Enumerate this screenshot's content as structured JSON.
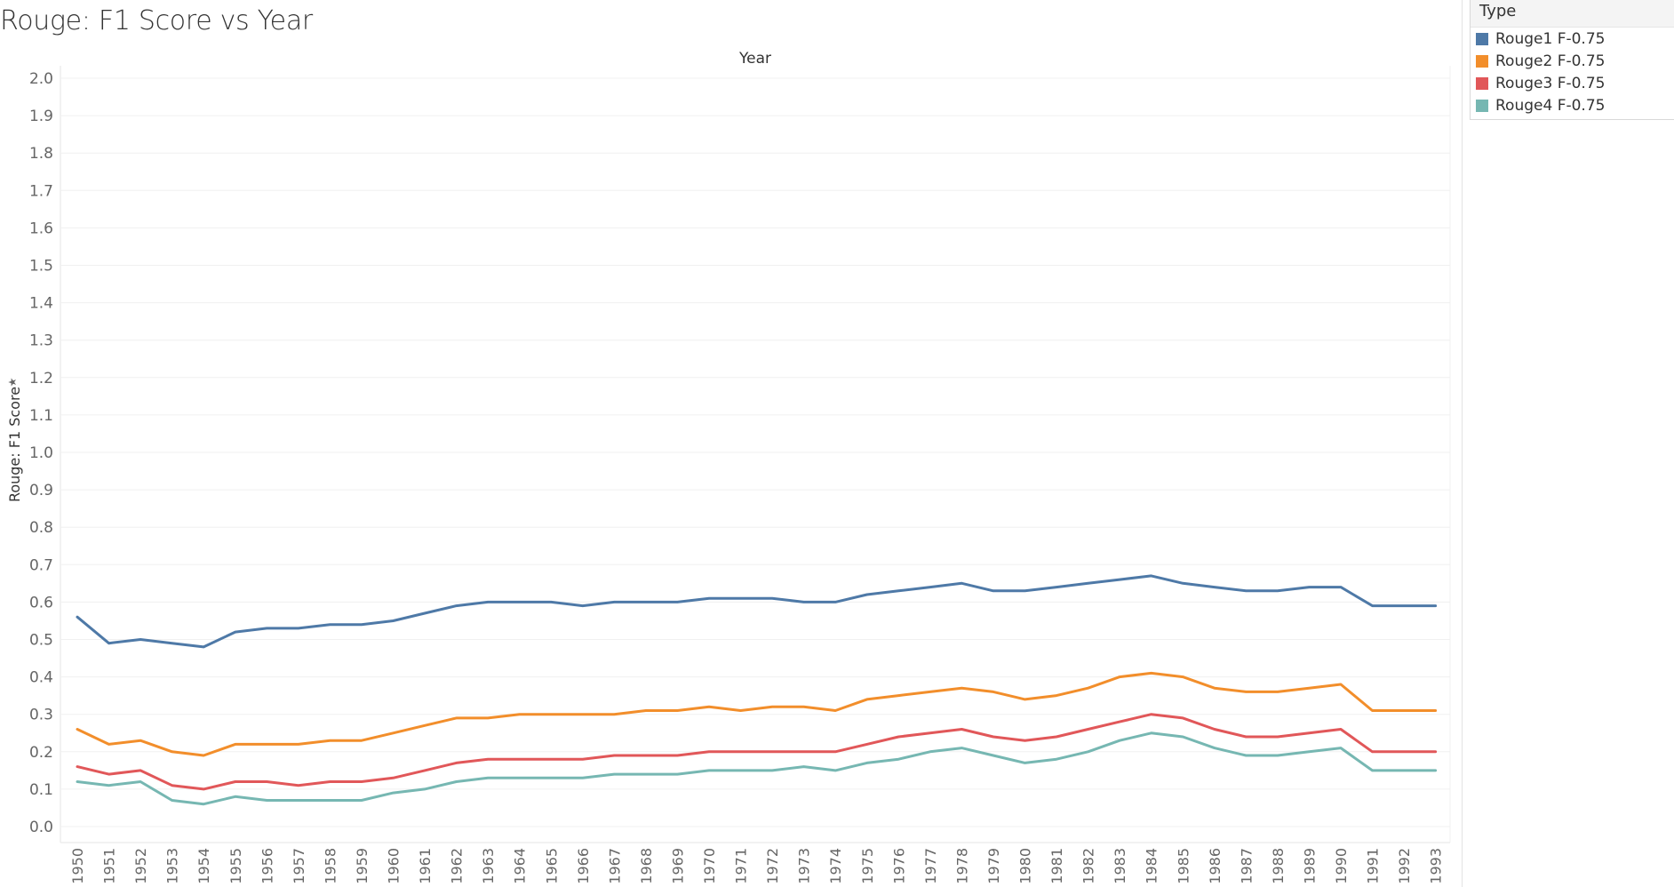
{
  "chart_data": {
    "type": "line",
    "title": "Rouge: F1 Score vs Year",
    "xlabel": "Year",
    "ylabel": "Rouge: F1 Score",
    "ylim": [
      0,
      2
    ],
    "yticks": [
      "0.0",
      "0.1",
      "0.2",
      "0.3",
      "0.4",
      "0.5",
      "0.6",
      "0.7",
      "0.8",
      "0.9",
      "1.0",
      "1.1",
      "1.2",
      "1.3",
      "1.4",
      "1.5",
      "1.6",
      "1.7",
      "1.8",
      "1.9",
      "2.0"
    ],
    "grid": true,
    "legend_position": "top-right",
    "categories": [
      "1950",
      "1951",
      "1952",
      "1953",
      "1954",
      "1955",
      "1956",
      "1957",
      "1958",
      "1959",
      "1960",
      "1961",
      "1962",
      "1963",
      "1964",
      "1965",
      "1966",
      "1967",
      "1968",
      "1969",
      "1970",
      "1971",
      "1972",
      "1973",
      "1974",
      "1975",
      "1976",
      "1977",
      "1978",
      "1979",
      "1980",
      "1981",
      "1982",
      "1983",
      "1984",
      "1985",
      "1986",
      "1987",
      "1988",
      "1989",
      "1990",
      "1991",
      "1992",
      "1993"
    ],
    "series": [
      {
        "name": "Rouge1 F-0.75",
        "color": "#4e79a7",
        "values": [
          0.56,
          0.49,
          0.5,
          0.49,
          0.48,
          0.52,
          0.53,
          0.53,
          0.54,
          0.54,
          0.55,
          0.57,
          0.59,
          0.6,
          0.6,
          0.6,
          0.59,
          0.6,
          0.6,
          0.6,
          0.61,
          0.61,
          0.61,
          0.6,
          0.6,
          0.62,
          0.63,
          0.64,
          0.65,
          0.63,
          0.63,
          0.64,
          0.65,
          0.66,
          0.67,
          0.65,
          0.64,
          0.63,
          0.63,
          0.64,
          0.64,
          0.59,
          0.59,
          0.59
        ]
      },
      {
        "name": "Rouge2 F-0.75",
        "color": "#f28e2b",
        "values": [
          0.26,
          0.22,
          0.23,
          0.2,
          0.19,
          0.22,
          0.22,
          0.22,
          0.23,
          0.23,
          0.25,
          0.27,
          0.29,
          0.29,
          0.3,
          0.3,
          0.3,
          0.3,
          0.31,
          0.31,
          0.32,
          0.31,
          0.32,
          0.32,
          0.31,
          0.34,
          0.35,
          0.36,
          0.37,
          0.36,
          0.34,
          0.35,
          0.37,
          0.4,
          0.41,
          0.4,
          0.37,
          0.36,
          0.36,
          0.37,
          0.38,
          0.31,
          0.31,
          0.31
        ]
      },
      {
        "name": "Rouge3 F-0.75",
        "color": "#e15759",
        "values": [
          0.16,
          0.14,
          0.15,
          0.11,
          0.1,
          0.12,
          0.12,
          0.11,
          0.12,
          0.12,
          0.13,
          0.15,
          0.17,
          0.18,
          0.18,
          0.18,
          0.18,
          0.19,
          0.19,
          0.19,
          0.2,
          0.2,
          0.2,
          0.2,
          0.2,
          0.22,
          0.24,
          0.25,
          0.26,
          0.24,
          0.23,
          0.24,
          0.26,
          0.28,
          0.3,
          0.29,
          0.26,
          0.24,
          0.24,
          0.25,
          0.26,
          0.2,
          0.2,
          0.2
        ]
      },
      {
        "name": "Rouge4 F-0.75",
        "color": "#76b7b2",
        "values": [
          0.12,
          0.11,
          0.12,
          0.07,
          0.06,
          0.08,
          0.07,
          0.07,
          0.07,
          0.07,
          0.09,
          0.1,
          0.12,
          0.13,
          0.13,
          0.13,
          0.13,
          0.14,
          0.14,
          0.14,
          0.15,
          0.15,
          0.15,
          0.16,
          0.15,
          0.17,
          0.18,
          0.2,
          0.21,
          0.19,
          0.17,
          0.18,
          0.2,
          0.23,
          0.25,
          0.24,
          0.21,
          0.19,
          0.19,
          0.2,
          0.21,
          0.15,
          0.15,
          0.15
        ]
      }
    ]
  },
  "legend": {
    "title": "Type"
  }
}
